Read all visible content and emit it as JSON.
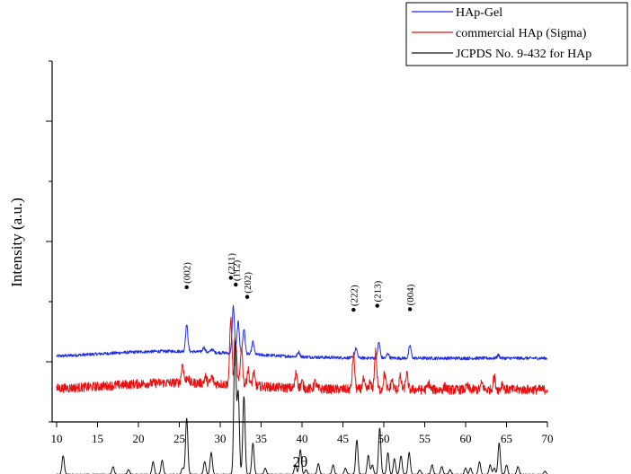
{
  "chart_data": {
    "type": "line",
    "title": "",
    "xlabel": "2θ",
    "ylabel": "Intensity (a.u.)",
    "xlim": [
      10,
      70
    ],
    "x_ticks": [
      "10",
      "15",
      "20",
      "25",
      "30",
      "35",
      "40",
      "45",
      "50",
      "55",
      "60",
      "65",
      "70"
    ],
    "y_ticks_labeled": false,
    "grid": false,
    "legend_position": "top-right",
    "colors": {
      "hap_gel": "#1f2ee6",
      "commercial": "#e81010",
      "jcpds": "#111111"
    },
    "series": [
      {
        "name": "HAp-Gel",
        "baseline": 12,
        "noise": 0.5,
        "hump": {
          "center": 24,
          "height": 2.2,
          "width": 9
        },
        "peaks": [
          [
            25.9,
            8.5
          ],
          [
            28.0,
            1.5
          ],
          [
            29.0,
            1.0
          ],
          [
            31.6,
            15
          ],
          [
            32.2,
            10
          ],
          [
            32.9,
            8
          ],
          [
            34.0,
            4
          ],
          [
            39.6,
            1.5
          ],
          [
            46.6,
            3
          ],
          [
            49.4,
            5
          ],
          [
            50.5,
            1.5
          ],
          [
            53.2,
            4
          ],
          [
            64.0,
            1.0
          ]
        ],
        "annotations": [
          {
            "label": "(002)",
            "x": 25.9,
            "dot_y": 34.6
          },
          {
            "label": "(211)",
            "x": 31.3,
            "dot_y": 37.6
          },
          {
            "label": "(112)",
            "x": 31.9,
            "dot_y": 35.4
          },
          {
            "label": "(202)",
            "x": 33.3,
            "dot_y": 31.5
          },
          {
            "label": "(222)",
            "x": 46.3,
            "dot_y": 27.4
          },
          {
            "label": "(213)",
            "x": 49.2,
            "dot_y": 28.7
          },
          {
            "label": "(004)",
            "x": 53.2,
            "dot_y": 27.6
          }
        ]
      },
      {
        "name": "commercial HAp (Sigma)",
        "baseline": 2,
        "noise": 1.5,
        "hump": {
          "center": 25,
          "height": 2.2,
          "width": 8
        },
        "peaks": [
          [
            25.4,
            6
          ],
          [
            26.0,
            2
          ],
          [
            28.2,
            2
          ],
          [
            29.0,
            2
          ],
          [
            31.3,
            21
          ],
          [
            31.9,
            12
          ],
          [
            32.6,
            12
          ],
          [
            33.4,
            5
          ],
          [
            34.1,
            4
          ],
          [
            39.3,
            5
          ],
          [
            40.0,
            2
          ],
          [
            41.6,
            2
          ],
          [
            46.3,
            11
          ],
          [
            47.5,
            3
          ],
          [
            48.3,
            2
          ],
          [
            49.0,
            12
          ],
          [
            50.1,
            5
          ],
          [
            51.0,
            3
          ],
          [
            52.0,
            4
          ],
          [
            52.8,
            5
          ],
          [
            55.5,
            2
          ],
          [
            57.5,
            1
          ],
          [
            60.2,
            1
          ],
          [
            62.0,
            2
          ],
          [
            63.5,
            4
          ],
          [
            64.5,
            2
          ]
        ]
      },
      {
        "name": "JCPDS No. 9-432 for HAp",
        "baseline": -25,
        "noise": 0.15,
        "hump": {
          "center": 25,
          "height": 0,
          "width": 8
        },
        "peaks": [
          [
            10.8,
            6
          ],
          [
            16.9,
            2.5
          ],
          [
            18.8,
            1.5
          ],
          [
            21.8,
            4
          ],
          [
            22.9,
            4.5
          ],
          [
            25.4,
            2
          ],
          [
            25.9,
            18
          ],
          [
            28.1,
            4
          ],
          [
            28.9,
            7
          ],
          [
            31.8,
            43
          ],
          [
            32.2,
            26
          ],
          [
            32.9,
            25
          ],
          [
            34.0,
            10
          ],
          [
            35.5,
            2
          ],
          [
            39.2,
            3
          ],
          [
            39.8,
            8
          ],
          [
            40.5,
            1.5
          ],
          [
            42.0,
            3.5
          ],
          [
            43.8,
            3
          ],
          [
            45.3,
            2
          ],
          [
            46.7,
            11
          ],
          [
            48.1,
            6
          ],
          [
            48.6,
            3
          ],
          [
            49.5,
            15
          ],
          [
            50.5,
            7
          ],
          [
            51.3,
            5
          ],
          [
            52.1,
            6
          ],
          [
            53.1,
            7
          ],
          [
            54.4,
            1.5
          ],
          [
            55.9,
            3
          ],
          [
            57.1,
            2.5
          ],
          [
            58.1,
            1.5
          ],
          [
            60.0,
            2
          ],
          [
            60.6,
            2
          ],
          [
            61.7,
            4
          ],
          [
            63.0,
            3
          ],
          [
            63.5,
            2
          ],
          [
            64.1,
            10
          ],
          [
            65.0,
            3
          ],
          [
            66.4,
            2.5
          ],
          [
            69.7,
            1
          ]
        ]
      }
    ]
  }
}
